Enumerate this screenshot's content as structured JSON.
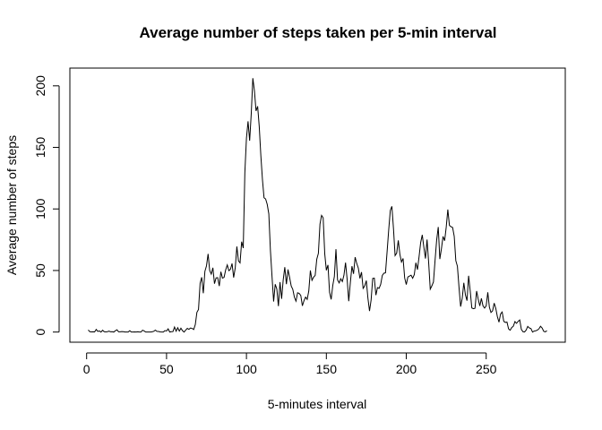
{
  "chart_data": {
    "type": "line",
    "title": "Average number of steps taken per 5-min interval",
    "x_label": "5-minutes interval",
    "y_label": "Average number of steps",
    "x": [
      1,
      2,
      3,
      4,
      5,
      6,
      7,
      8,
      9,
      10,
      11,
      12,
      13,
      14,
      15,
      16,
      17,
      18,
      19,
      20,
      21,
      22,
      23,
      24,
      25,
      26,
      27,
      28,
      29,
      30,
      31,
      32,
      33,
      34,
      35,
      36,
      37,
      38,
      39,
      40,
      41,
      42,
      43,
      44,
      45,
      46,
      47,
      48,
      49,
      50,
      51,
      52,
      53,
      54,
      55,
      56,
      57,
      58,
      59,
      60,
      61,
      62,
      63,
      64,
      65,
      66,
      67,
      68,
      69,
      70,
      71,
      72,
      73,
      74,
      75,
      76,
      77,
      78,
      79,
      80,
      81,
      82,
      83,
      84,
      85,
      86,
      87,
      88,
      89,
      90,
      91,
      92,
      93,
      94,
      95,
      96,
      97,
      98,
      99,
      100,
      101,
      102,
      103,
      104,
      105,
      106,
      107,
      108,
      109,
      110,
      111,
      112,
      113,
      114,
      115,
      116,
      117,
      118,
      119,
      120,
      121,
      122,
      123,
      124,
      125,
      126,
      127,
      128,
      129,
      130,
      131,
      132,
      133,
      134,
      135,
      136,
      137,
      138,
      139,
      140,
      141,
      142,
      143,
      144,
      145,
      146,
      147,
      148,
      149,
      150,
      151,
      152,
      153,
      154,
      155,
      156,
      157,
      158,
      159,
      160,
      161,
      162,
      163,
      164,
      165,
      166,
      167,
      168,
      169,
      170,
      171,
      172,
      173,
      174,
      175,
      176,
      177,
      178,
      179,
      180,
      181,
      182,
      183,
      184,
      185,
      186,
      187,
      188,
      189,
      190,
      191,
      192,
      193,
      194,
      195,
      196,
      197,
      198,
      199,
      200,
      201,
      202,
      203,
      204,
      205,
      206,
      207,
      208,
      209,
      210,
      211,
      212,
      213,
      214,
      215,
      216,
      217,
      218,
      219,
      220,
      221,
      222,
      223,
      224,
      225,
      226,
      227,
      228,
      229,
      230,
      231,
      232,
      233,
      234,
      235,
      236,
      237,
      238,
      239,
      240,
      241,
      242,
      243,
      244,
      245,
      246,
      247,
      248,
      249,
      250,
      251,
      252,
      253,
      254,
      255,
      256,
      257,
      258,
      259,
      260,
      261,
      262,
      263,
      264,
      265,
      266,
      267,
      268,
      269,
      270,
      271,
      272,
      273,
      274,
      275,
      276,
      277,
      278,
      279,
      280,
      281,
      282,
      283,
      284,
      285,
      286,
      287,
      288
    ],
    "values": [
      1.7,
      0.3,
      0.1,
      0.2,
      0.1,
      2.1,
      0.5,
      0.9,
      0,
      1.5,
      0.3,
      0.1,
      0.3,
      0.7,
      0.2,
      0.3,
      0,
      1.1,
      1.8,
      0.2,
      0.2,
      0.4,
      0.3,
      0,
      0,
      0,
      1.1,
      0,
      0,
      0.1,
      0,
      0.2,
      0,
      0,
      1.5,
      0.9,
      0,
      0,
      0,
      0,
      0.2,
      0.6,
      1.6,
      0.6,
      0.5,
      0.1,
      0,
      0,
      1.2,
      0.9,
      2.6,
      0,
      0.3,
      0.4,
      4.1,
      0.7,
      3.5,
      0.8,
      3.1,
      1.1,
      0,
      1.6,
      3,
      2.2,
      3.3,
      3,
      2.1,
      6.1,
      16,
      18.3,
      39.5,
      44.5,
      31.5,
      49.3,
      53.8,
      63.5,
      50,
      47.1,
      52.2,
      39.3,
      44,
      44.2,
      37.4,
      49,
      43.8,
      44.4,
      50.5,
      54.5,
      49.9,
      51,
      55.7,
      44.3,
      52.3,
      69.5,
      57.8,
      56.2,
      73.4,
      68.2,
      129.4,
      157.5,
      171.2,
      155.4,
      177.3,
      206.2,
      195.9,
      179.6,
      183.4,
      167,
      143.5,
      124,
      109.1,
      108.1,
      103.7,
      96,
      66.2,
      45.2,
      24.8,
      38.8,
      35,
      21.1,
      40.6,
      27,
      42.4,
      52.7,
      38.9,
      50.8,
      44.3,
      37.4,
      34.7,
      28.3,
      25.1,
      31.9,
      31.4,
      29.7,
      21.3,
      25.5,
      28.4,
      26.5,
      33.4,
      50,
      42,
      44.6,
      46,
      59.2,
      63.9,
      87.7,
      94.8,
      92.8,
      63.4,
      50.2,
      54.5,
      32.4,
      26.5,
      37.7,
      45.1,
      67.3,
      42.3,
      39.9,
      43.3,
      41,
      46.2,
      56.4,
      42.8,
      25.1,
      40,
      53.5,
      47.3,
      60.8,
      55.8,
      52,
      43.6,
      48.7,
      35.5,
      37.5,
      41.8,
      27.5,
      17.1,
      26.1,
      43.6,
      43.8,
      30,
      36.1,
      35.5,
      38.8,
      46,
      47.8,
      48.1,
      65.3,
      82.9,
      98.7,
      102.1,
      84,
      62.1,
      64.1,
      74.5,
      63.2,
      56.9,
      59.8,
      43.9,
      38.6,
      44.7,
      45.5,
      46.2,
      43.7,
      46.6,
      56.3,
      50.7,
      61.2,
      72.7,
      78.9,
      68.9,
      59.7,
      75.1,
      56.5,
      34.8,
      37.5,
      40.7,
      58,
      74.7,
      85.3,
      59.3,
      67.8,
      77.7,
      74.2,
      85.3,
      99.5,
      86.6,
      85.6,
      84.9,
      77.8,
      58,
      53.4,
      36.3,
      20.7,
      27.4,
      40,
      30.2,
      25.5,
      45.7,
      33.5,
      19.6,
      19,
      19.3,
      33.3,
      26.8,
      21.2,
      27.3,
      21.3,
      19.5,
      21.3,
      32.3,
      20.2,
      15.9,
      17.2,
      23.5,
      19.2,
      12.5,
      8,
      14.7,
      16.3,
      8.7,
      7.8,
      8.1,
      2.6,
      1.5,
      3.7,
      4.8,
      8.5,
      7.1,
      8.7,
      9.8,
      2.2,
      0.3,
      0.1,
      1.6,
      4.6,
      3.3,
      2.8,
      0,
      0.8,
      1,
      1.6,
      2.6,
      4.7,
      3.3,
      0.6,
      0.2,
      1.1
    ],
    "color": "#000000",
    "xlim": [
      -10.48,
      299.48
    ],
    "xticks": [
      0,
      50,
      100,
      150,
      200,
      250
    ],
    "ylim": [
      -8.25,
      214.42
    ],
    "yticks": [
      0,
      50,
      100,
      150,
      200
    ]
  }
}
